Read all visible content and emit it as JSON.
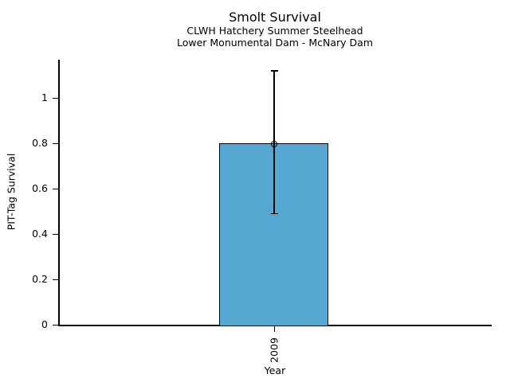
{
  "chart_data": {
    "type": "bar",
    "title": "Smolt Survival",
    "subtitle_line1": "CLWH Hatchery Summer Steelhead",
    "subtitle_line2": "Lower Monumental Dam - McNary Dam",
    "xlabel": "Year",
    "ylabel": "PIT-Tag Survival",
    "categories": [
      "2009"
    ],
    "values": [
      0.8
    ],
    "error_low": [
      0.49
    ],
    "error_high": [
      1.12
    ],
    "yticks": [
      0,
      0.2,
      0.4,
      0.6,
      0.8,
      1
    ],
    "ytick_labels": [
      "0",
      "0.2",
      "0.4",
      "0.6",
      "0.8",
      "1"
    ],
    "ylim": [
      0,
      1.17
    ],
    "grid": false,
    "legend": "none",
    "marker": "open-circle",
    "bar_color": "#56a8d2",
    "bar_border_color": "#000000",
    "axis_color": "#000000",
    "background_color": "#ffffff"
  }
}
